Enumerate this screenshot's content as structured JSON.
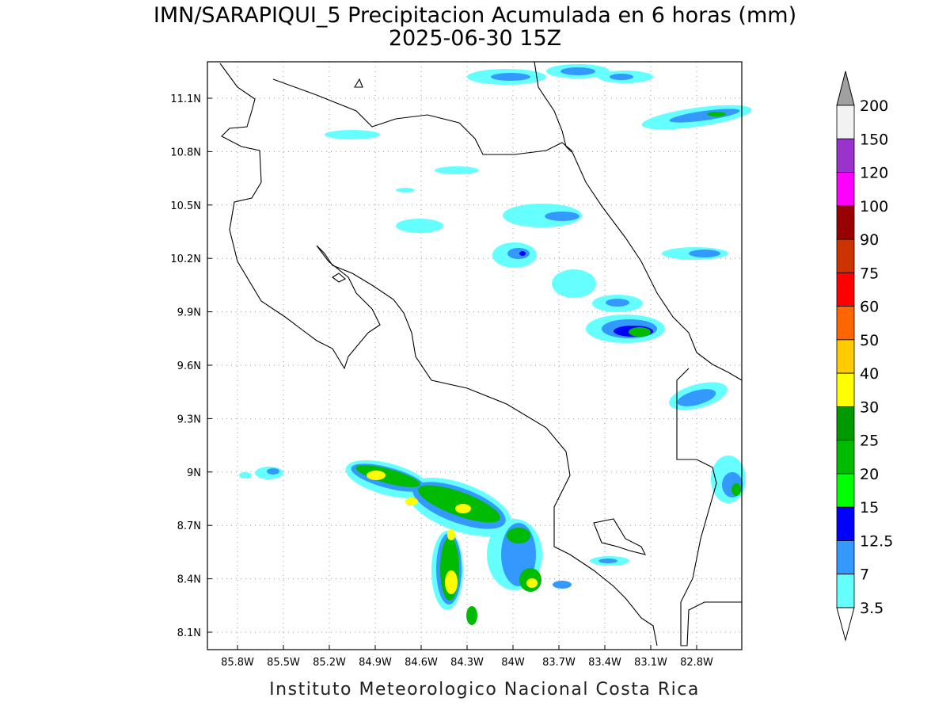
{
  "title": "IMN/SARAPIQUI_5 Precipitacion Acumulada en 6 horas (mm)",
  "subtitle": "2025-06-30 15Z",
  "x_axis": {
    "ticks": [
      "85.8W",
      "85.5W",
      "85.2W",
      "84.9W",
      "84.6W",
      "84.3W",
      "84W",
      "83.7W",
      "83.4W",
      "83.1W",
      "82.8W"
    ]
  },
  "y_axis": {
    "ticks": [
      "11.1N",
      "10.8N",
      "10.5N",
      "10.2N",
      "9.9N",
      "9.6N",
      "9.3N",
      "9N",
      "8.7N",
      "8.4N",
      "8.1N"
    ]
  },
  "colorbar": {
    "labels": [
      "200",
      "150",
      "120",
      "100",
      "90",
      "75",
      "60",
      "50",
      "40",
      "30",
      "25",
      "20",
      "15",
      "12.5",
      "7",
      "3.5"
    ],
    "colors": [
      "#f2f2f2",
      "#9933cc",
      "#ff00ff",
      "#990000",
      "#cc3300",
      "#ff0000",
      "#ff6600",
      "#ffcc00",
      "#ffff00",
      "#009900",
      "#00bb00",
      "#00ff00",
      "#0000ff",
      "#3399ff",
      "#66ffff"
    ],
    "over_color": "#a0a0a0",
    "under_color": "#ffffff"
  },
  "footer": "Instituto Meteorologico Nacional Costa Rica"
}
